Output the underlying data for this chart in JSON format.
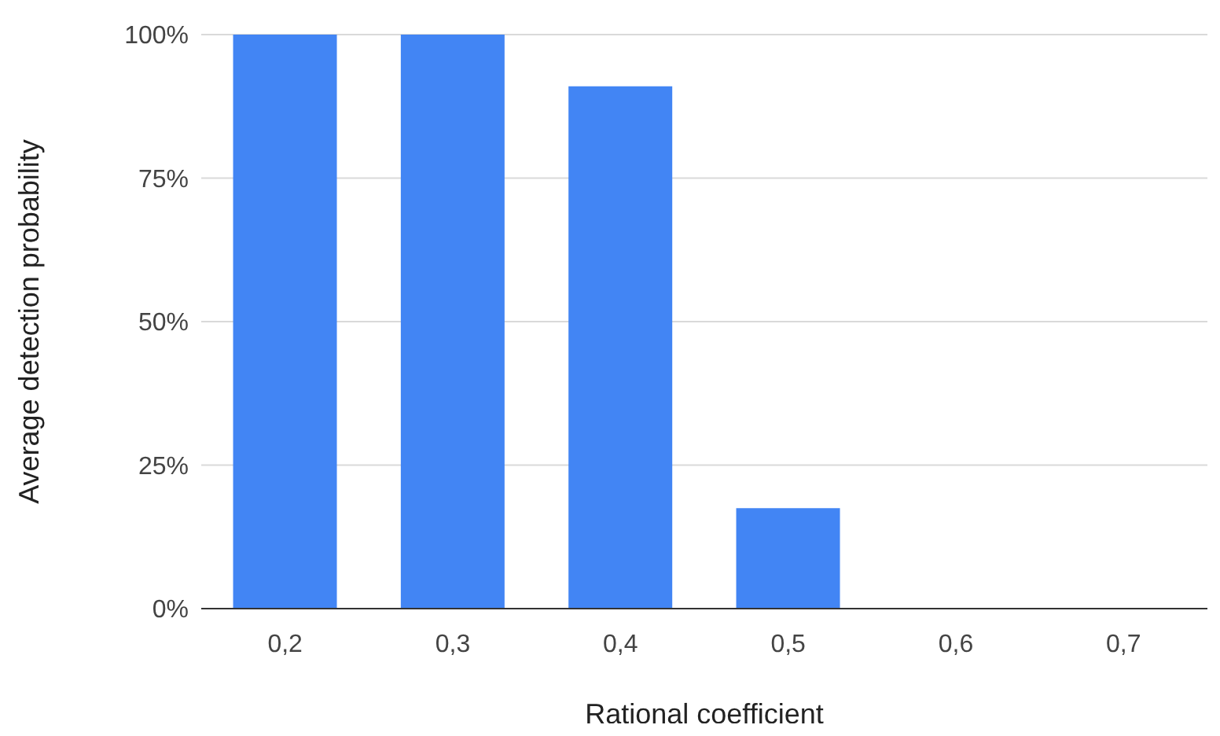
{
  "chart_data": {
    "type": "bar",
    "xlabel": "Rational coefficient",
    "ylabel": "Average detection probability",
    "categories": [
      "0,2",
      "0,3",
      "0,4",
      "0,5",
      "0,6",
      "0,7"
    ],
    "values": [
      100,
      100,
      91,
      17.5,
      0,
      0
    ],
    "color": "#4285f4",
    "ylim": [
      0,
      100
    ],
    "yticks": [
      {
        "value": 0,
        "label": "0%"
      },
      {
        "value": 25,
        "label": "25%"
      },
      {
        "value": 50,
        "label": "50%"
      },
      {
        "value": 75,
        "label": "75%"
      },
      {
        "value": 100,
        "label": "100%"
      }
    ],
    "grid": "y",
    "legend": false
  }
}
